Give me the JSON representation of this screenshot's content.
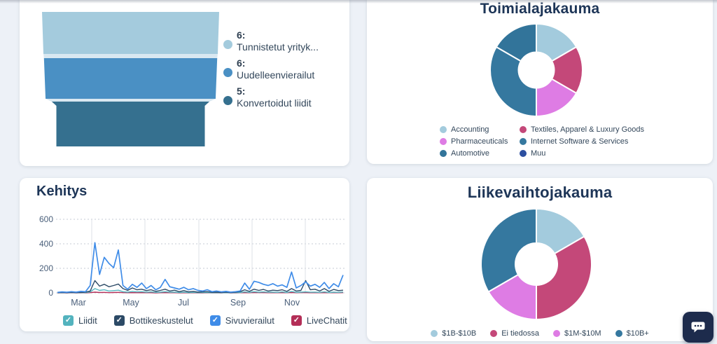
{
  "funnel_card": {
    "gap_color": "#d9e8f1",
    "chart_data": {
      "type": "funnel",
      "stages": [
        {
          "value": "6",
          "label": "Tunnistetut yrityk...",
          "color": "#a4cbdd"
        },
        {
          "value": "6",
          "label": "Uudelleenvierailut",
          "color": "#4a90c4"
        },
        {
          "value": "5",
          "label": "Konvertoidut liidit",
          "color": "#35708f"
        }
      ]
    }
  },
  "industry_card": {
    "title": "Toimialajakauma",
    "chart_data": {
      "type": "pie",
      "donut": true,
      "slices": [
        {
          "label": "Accounting",
          "value": 1,
          "color": "#a3cbdd"
        },
        {
          "label": "Textiles, Apparel & Luxury Goods",
          "value": 1,
          "color": "#c44879"
        },
        {
          "label": "Pharmaceuticals",
          "value": 1,
          "color": "#de7ce4"
        },
        {
          "label": "Internet Software & Services",
          "value": 2,
          "color": "#35789f"
        },
        {
          "label": "Automotive",
          "value": 1,
          "color": "#32749a"
        },
        {
          "label": "Muu",
          "value": 0,
          "color": "#2c4fa0"
        }
      ],
      "legend_position": "bottom"
    }
  },
  "kehitys_card": {
    "title": "Kehitys",
    "chart_data": {
      "type": "line",
      "ylim": [
        0,
        600
      ],
      "y_ticks": [
        "600",
        "400",
        "200",
        "0"
      ],
      "x_ticks": [
        "Mar",
        "May",
        "Jul",
        "Sep",
        "Nov"
      ],
      "grid": true,
      "series": [
        {
          "name": "LiveChatit",
          "color": "#b32e57",
          "values": [
            0,
            1,
            0,
            1,
            0,
            1,
            0,
            2,
            6,
            3,
            4,
            2,
            3,
            4,
            2,
            1,
            2,
            1,
            2,
            1,
            1,
            0,
            1,
            2,
            1,
            1,
            0,
            1,
            0,
            1,
            0,
            0,
            1,
            0,
            0,
            0,
            1,
            0,
            0,
            1,
            2,
            1,
            3,
            2,
            2,
            1,
            2,
            1,
            2,
            1,
            3,
            1,
            2,
            2,
            1,
            2,
            1,
            2,
            1,
            2,
            1,
            2
          ]
        },
        {
          "name": "Liidit",
          "color": "#56b8c2",
          "values": [
            1,
            2,
            1,
            3,
            1,
            2,
            2,
            8,
            35,
            20,
            25,
            15,
            18,
            22,
            10,
            6,
            12,
            8,
            10,
            5,
            8,
            4,
            6,
            10,
            5,
            6,
            3,
            5,
            2,
            4,
            2,
            3,
            3,
            1,
            2,
            1,
            2,
            1,
            2,
            3,
            8,
            4,
            10,
            6,
            8,
            5,
            6,
            4,
            8,
            3,
            12,
            4,
            6,
            8,
            5,
            6,
            4,
            8,
            3,
            6,
            4,
            7
          ]
        },
        {
          "name": "Bottikeskustelut",
          "color": "#2c4a66",
          "values": [
            2,
            3,
            1,
            4,
            2,
            3,
            5,
            15,
            100,
            55,
            70,
            50,
            60,
            72,
            35,
            20,
            40,
            25,
            30,
            18,
            25,
            12,
            20,
            30,
            15,
            22,
            10,
            18,
            8,
            12,
            6,
            8,
            10,
            4,
            6,
            3,
            5,
            2,
            6,
            10,
            25,
            12,
            30,
            20,
            28,
            15,
            22,
            18,
            25,
            12,
            35,
            15,
            20,
            100,
            25,
            30,
            15,
            35,
            12,
            28,
            18,
            22
          ]
        },
        {
          "name": "Sivuvierailut",
          "color": "#3f8ce8",
          "values": [
            4,
            8,
            5,
            10,
            6,
            12,
            9,
            60,
            410,
            150,
            290,
            240,
            205,
            350,
            60,
            30,
            70,
            45,
            80,
            35,
            60,
            25,
            45,
            110,
            50,
            40,
            30,
            45,
            25,
            35,
            20,
            15,
            25,
            10,
            15,
            8,
            12,
            6,
            10,
            15,
            80,
            30,
            95,
            85,
            70,
            60,
            75,
            55,
            65,
            45,
            170,
            40,
            60,
            90,
            55,
            70,
            45,
            85,
            35,
            75,
            50,
            145
          ]
        }
      ]
    },
    "legend": [
      {
        "label": "Liidit",
        "color": "#53b3be",
        "checked": true
      },
      {
        "label": "Bottikeskustelut",
        "color": "#2c4a66",
        "checked": true
      },
      {
        "label": "Sivuvierailut",
        "color": "#3f8ce8",
        "checked": true
      },
      {
        "label": "LiveChatit",
        "color": "#b32e57",
        "checked": true
      }
    ]
  },
  "revenue_card": {
    "title": "Liikevaihtojakauma",
    "chart_data": {
      "type": "pie",
      "donut": true,
      "slices": [
        {
          "label": "$1B-$10B",
          "value": 1,
          "color": "#a3cbdd"
        },
        {
          "label": "Ei tiedossa",
          "value": 2,
          "color": "#c44879"
        },
        {
          "label": "$1M-$10M",
          "value": 1,
          "color": "#de7ce4"
        },
        {
          "label": "$10B+",
          "value": 2,
          "color": "#35789f"
        }
      ],
      "legend_position": "bottom"
    }
  },
  "chat_widget": {
    "icon": "chat-bubble-icon",
    "background": "#1d2b4c"
  }
}
